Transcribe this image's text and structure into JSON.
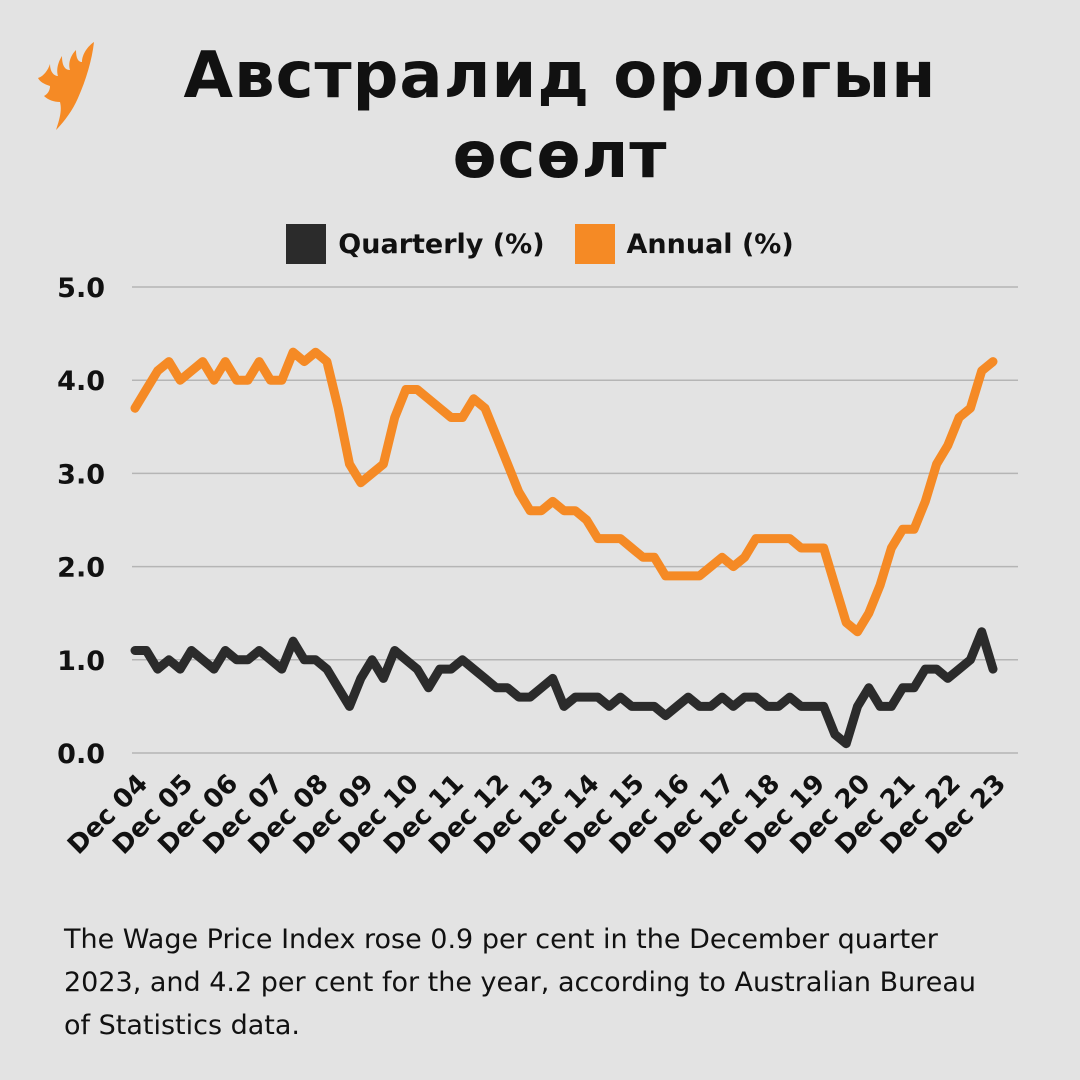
{
  "logo": {
    "name": "SBS",
    "color": "#f58a25"
  },
  "title": "Австралид орлогын өсөлт",
  "caption": "The Wage Price Index rose 0.9 per cent in the December quarter 2023, and 4.2 per cent for the year, according to Australian Bureau of Statistics data.",
  "chart_data": {
    "type": "line",
    "title": "Австралид орлогын өсөлт",
    "xlabel": "",
    "ylabel": "",
    "ylim": [
      0,
      5
    ],
    "y_ticks": [
      "0.0",
      "1.0",
      "2.0",
      "3.0",
      "4.0",
      "5.0"
    ],
    "x_ticks": [
      "Dec 04",
      "Dec 05",
      "Dec 06",
      "Dec 07",
      "Dec 08",
      "Dec 09",
      "Dec 10",
      "Dec 11",
      "Dec 12",
      "Dec 13",
      "Dec 14",
      "Dec 15",
      "Dec 16",
      "Dec 17",
      "Dec 18",
      "Dec 19",
      "Dec 20",
      "Dec 21",
      "Dec 22",
      "Dec 23"
    ],
    "x_range": [
      "Dec 04",
      "Dec 23"
    ],
    "x_frequency": "quarterly",
    "grid": true,
    "legend_position": "top",
    "series": [
      {
        "name": "Quarterly (%)",
        "color": "#2b2b2b",
        "values": [
          1.1,
          1.1,
          0.9,
          1.0,
          0.9,
          1.1,
          1.0,
          0.9,
          1.1,
          1.0,
          1.0,
          1.1,
          1.0,
          0.9,
          1.2,
          1.0,
          1.0,
          0.9,
          0.7,
          0.5,
          0.8,
          1.0,
          0.8,
          1.1,
          1.0,
          0.9,
          0.7,
          0.9,
          0.9,
          1.0,
          0.9,
          0.8,
          0.7,
          0.7,
          0.6,
          0.6,
          0.7,
          0.8,
          0.5,
          0.6,
          0.6,
          0.6,
          0.5,
          0.6,
          0.5,
          0.5,
          0.5,
          0.4,
          0.5,
          0.6,
          0.5,
          0.5,
          0.6,
          0.5,
          0.6,
          0.6,
          0.5,
          0.5,
          0.6,
          0.5,
          0.5,
          0.5,
          0.2,
          0.1,
          0.5,
          0.7,
          0.5,
          0.5,
          0.7,
          0.7,
          0.9,
          0.9,
          0.8,
          0.9,
          1.0,
          1.3,
          0.9
        ]
      },
      {
        "name": "Annual (%)",
        "color": "#f58a25",
        "values": [
          3.7,
          3.9,
          4.1,
          4.2,
          4.0,
          4.1,
          4.2,
          4.0,
          4.2,
          4.0,
          4.0,
          4.2,
          4.0,
          4.0,
          4.3,
          4.2,
          4.3,
          4.2,
          3.7,
          3.1,
          2.9,
          3.0,
          3.1,
          3.6,
          3.9,
          3.9,
          3.8,
          3.7,
          3.6,
          3.6,
          3.8,
          3.7,
          3.4,
          3.1,
          2.8,
          2.6,
          2.6,
          2.7,
          2.6,
          2.6,
          2.5,
          2.3,
          2.3,
          2.3,
          2.2,
          2.1,
          2.1,
          1.9,
          1.9,
          1.9,
          1.9,
          2.0,
          2.1,
          2.0,
          2.1,
          2.3,
          2.3,
          2.3,
          2.3,
          2.2,
          2.2,
          2.2,
          1.8,
          1.4,
          1.3,
          1.5,
          1.8,
          2.2,
          2.4,
          2.4,
          2.7,
          3.1,
          3.3,
          3.6,
          3.7,
          4.1,
          4.2
        ]
      }
    ]
  }
}
